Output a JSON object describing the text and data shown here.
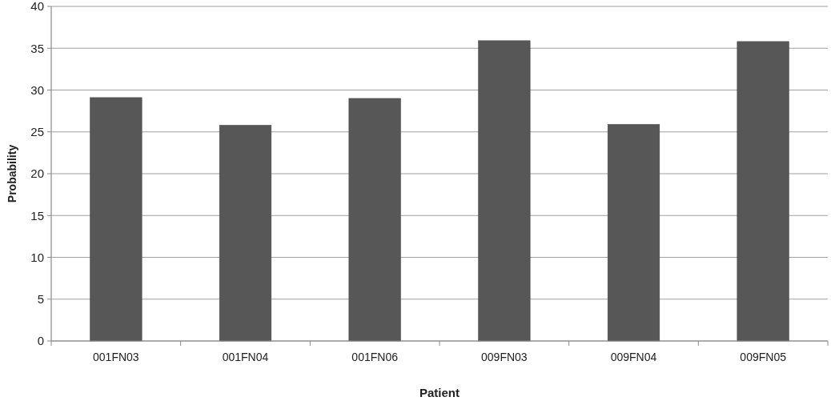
{
  "chart_data": {
    "type": "bar",
    "xlabel": "Patient",
    "ylabel": "Probability",
    "categories": [
      "001FN03",
      "001FN04",
      "001FN06",
      "009FN03",
      "009FN04",
      "009FN05"
    ],
    "values": [
      29.1,
      25.8,
      29.0,
      35.9,
      25.9,
      35.8
    ],
    "color": "#575757",
    "ylim": [
      0,
      40
    ],
    "yticks": [
      0,
      5,
      10,
      15,
      20,
      25,
      30,
      35,
      40
    ],
    "grid": "y"
  }
}
